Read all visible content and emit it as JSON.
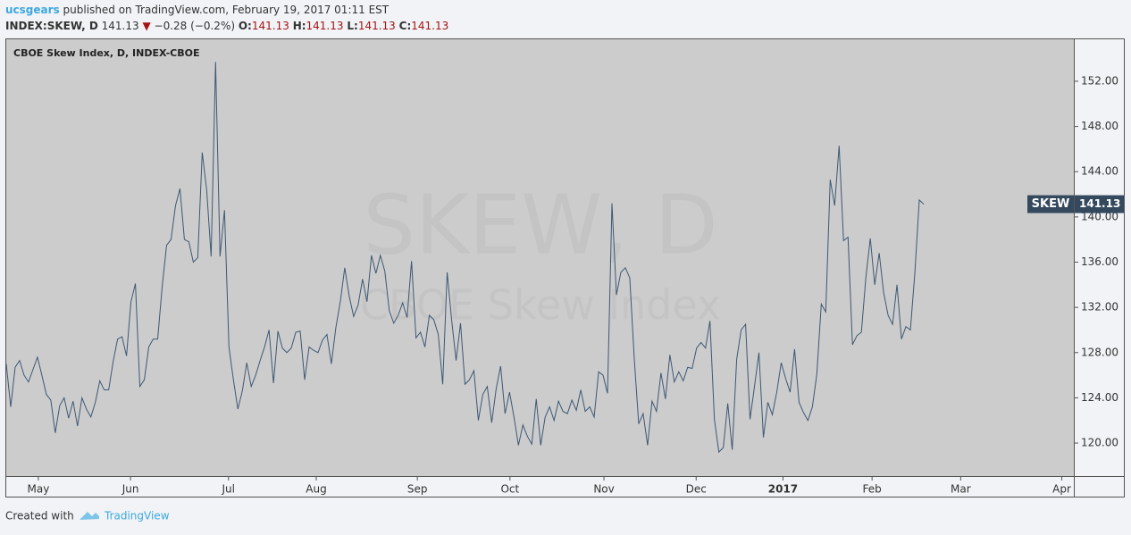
{
  "header": {
    "author": "ucsgears",
    "published": "published on TradingView.com, February 19, 2017 01:11 EST",
    "symbol": "INDEX:SKEW, D",
    "last": "141.13",
    "change": "−0.28 (−0.2%)",
    "ohlc": [
      {
        "label": "O:",
        "value": "141.13"
      },
      {
        "label": "H:",
        "value": "141.13"
      },
      {
        "label": "L:",
        "value": "141.13"
      },
      {
        "label": "C:",
        "value": "141.13"
      }
    ]
  },
  "footer": {
    "created": "Created with",
    "brand": "TradingView"
  },
  "chart_data": {
    "type": "line",
    "title": "CBOE Skew Index, D, INDEX-CBOE",
    "watermark": "SKEW, D",
    "watermark_sub": "CBOE Skew Index",
    "tag": "SKEW",
    "color": "#3d5875",
    "values": [
      127,
      123.2,
      126.7,
      127.3,
      126,
      125.4,
      126.5,
      127.6,
      126,
      124.3,
      123.8,
      120.9,
      123.3,
      124,
      122.2,
      123.7,
      121.5,
      124,
      123,
      122.3,
      123.6,
      125.5,
      124.7,
      124.7,
      127.2,
      129.2,
      129.4,
      127.7,
      132.5,
      134.1,
      125,
      125.6,
      128.5,
      129.2,
      129.2,
      133.8,
      137.5,
      138,
      141,
      142.5,
      138,
      137.8,
      136,
      136.4,
      145.7,
      142.4,
      136.5,
      153.7,
      136.5,
      140.6,
      128.5,
      125.6,
      123,
      124.6,
      127.1,
      125,
      126,
      127.3,
      128.5,
      130,
      125.3,
      129.9,
      128.4,
      128,
      128.4,
      129.8,
      129.9,
      125.6,
      128.5,
      128.2,
      128,
      129.1,
      129.6,
      127,
      130.2,
      132.5,
      135.5,
      133,
      131.2,
      132.2,
      134.5,
      132.5,
      136.6,
      135,
      136.6,
      135.2,
      131.7,
      130.6,
      131.3,
      132.4,
      131.1,
      136.1,
      129.3,
      129.8,
      128.5,
      131.3,
      130.9,
      129.6,
      125.2,
      135.1,
      130.9,
      127.3,
      130.6,
      125.2,
      125.6,
      126.4,
      122,
      124.3,
      125,
      121.8,
      124.8,
      126.8,
      122.6,
      124.5,
      122.3,
      119.8,
      121.6,
      120.6,
      119.9,
      123.9,
      119.8,
      122.3,
      123.2,
      122,
      123.7,
      122.8,
      122.6,
      123.8,
      122.9,
      124.7,
      122.8,
      123.2,
      122.3,
      126.3,
      126,
      124.4,
      141.2,
      133.1,
      135.1,
      135.5,
      134.6,
      127.5,
      121.7,
      122.6,
      119.8,
      123.7,
      122.8,
      126.2,
      123.9,
      127.8,
      125.4,
      126.3,
      125.5,
      126.7,
      126.6,
      128.4,
      128.9,
      128.4,
      130.8,
      122.1,
      119.2,
      119.6,
      123.5,
      119.4,
      127.4,
      130,
      130.5,
      122.1,
      125,
      128,
      120.5,
      123.6,
      122.5,
      124.5,
      127.1,
      125.7,
      124.5,
      128.3,
      123.6,
      122.7,
      122,
      123.2,
      126.1,
      132.3,
      131.6,
      143.3,
      141,
      146.3,
      137.9,
      138.2,
      128.7,
      129.5,
      129.8,
      134.6,
      138.1,
      134,
      136.8,
      133.3,
      131.3,
      130.5,
      134,
      129.2,
      130.3,
      130,
      135,
      141.5,
      141.13
    ],
    "xlim": [
      0,
      239.7
    ],
    "xticks": [
      {
        "value": 7.2,
        "label": "May"
      },
      {
        "value": 27.9,
        "label": "Jun"
      },
      {
        "value": 49.9,
        "label": "Jul"
      },
      {
        "value": 69.6,
        "label": "Aug"
      },
      {
        "value": 92.3,
        "label": "Sep"
      },
      {
        "value": 113.1,
        "label": "Oct"
      },
      {
        "value": 134.2,
        "label": "Nov"
      },
      {
        "value": 154.9,
        "label": "Dec"
      },
      {
        "value": 174.4,
        "label": "2017"
      },
      {
        "value": 194.4,
        "label": "Feb"
      },
      {
        "value": 214.3,
        "label": "Mar"
      },
      {
        "value": 237.0,
        "label": "Apr"
      }
    ],
    "ylim": [
      117.08,
      155.71
    ],
    "yticks": [
      {
        "value": 120,
        "label": "120.00"
      },
      {
        "value": 124,
        "label": "124.00"
      },
      {
        "value": 128,
        "label": "128.00"
      },
      {
        "value": 132,
        "label": "132.00"
      },
      {
        "value": 136,
        "label": "136.00"
      },
      {
        "value": 140,
        "label": "140.00"
      },
      {
        "value": 144,
        "label": "144.00"
      },
      {
        "value": 148,
        "label": "148.00"
      },
      {
        "value": 152,
        "label": "152.00"
      }
    ]
  }
}
